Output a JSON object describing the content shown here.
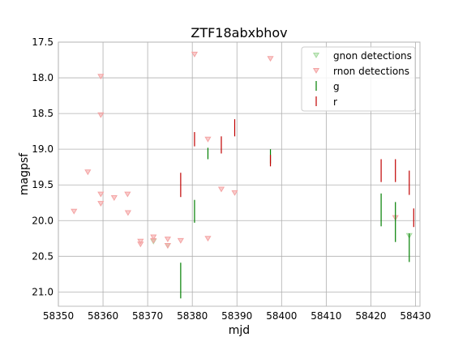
{
  "chart_data": {
    "type": "scatter",
    "title": "ZTF18abxbhov",
    "xlabel": "mjd",
    "ylabel": "magpsf",
    "xlim": [
      58350,
      58431
    ],
    "ylim": [
      21.2,
      17.5
    ],
    "y_inverted": true,
    "grid": true,
    "legend_position": "top-right",
    "xticks": [
      "58350",
      "58360",
      "58370",
      "58380",
      "58390",
      "58400",
      "58410",
      "58420",
      "58430"
    ],
    "yticks": [
      "17.5",
      "18.0",
      "18.5",
      "19.0",
      "19.5",
      "20.0",
      "20.5",
      "21.0"
    ],
    "colors": {
      "g_line": "#007f00",
      "r_line": "#c00000",
      "g_nondet": "#a6dba0",
      "r_nondet": "#f4a3a3"
    },
    "series": [
      {
        "name": "gnon detections",
        "kind": "nondetection",
        "band": "g",
        "points": [
          {
            "x": 58371.3,
            "y": 20.29
          },
          {
            "x": 58374.5,
            "y": 20.35
          },
          {
            "x": 58428.6,
            "y": 20.21
          }
        ]
      },
      {
        "name": "rnon detections",
        "kind": "nondetection",
        "band": "r",
        "points": [
          {
            "x": 58353.5,
            "y": 19.87
          },
          {
            "x": 58356.6,
            "y": 19.32
          },
          {
            "x": 58359.5,
            "y": 17.98
          },
          {
            "x": 58359.5,
            "y": 18.52
          },
          {
            "x": 58359.5,
            "y": 19.63
          },
          {
            "x": 58359.5,
            "y": 19.76
          },
          {
            "x": 58362.5,
            "y": 19.68
          },
          {
            "x": 58365.5,
            "y": 19.63
          },
          {
            "x": 58365.6,
            "y": 19.89
          },
          {
            "x": 58368.4,
            "y": 20.29
          },
          {
            "x": 58368.4,
            "y": 20.33
          },
          {
            "x": 58371.3,
            "y": 20.23
          },
          {
            "x": 58371.3,
            "y": 20.28
          },
          {
            "x": 58374.5,
            "y": 20.26
          },
          {
            "x": 58374.5,
            "y": 20.35
          },
          {
            "x": 58377.4,
            "y": 20.28
          },
          {
            "x": 58380.5,
            "y": 17.67
          },
          {
            "x": 58383.5,
            "y": 18.86
          },
          {
            "x": 58383.5,
            "y": 20.25
          },
          {
            "x": 58386.5,
            "y": 19.56
          },
          {
            "x": 58389.5,
            "y": 19.61
          },
          {
            "x": 58397.5,
            "y": 17.73
          },
          {
            "x": 58425.5,
            "y": 19.96
          }
        ]
      },
      {
        "name": "g",
        "kind": "detection",
        "band": "g",
        "points": [
          {
            "x": 58377.4,
            "y": 20.84,
            "err": 0.25
          },
          {
            "x": 58380.5,
            "y": 19.87,
            "err": 0.16
          },
          {
            "x": 58383.5,
            "y": 19.06,
            "err": 0.08
          },
          {
            "x": 58397.5,
            "y": 19.1,
            "err": 0.1
          },
          {
            "x": 58422.3,
            "y": 19.85,
            "err": 0.23
          },
          {
            "x": 58425.5,
            "y": 20.02,
            "err": 0.28
          },
          {
            "x": 58428.6,
            "y": 20.38,
            "err": 0.2
          }
        ]
      },
      {
        "name": "r",
        "kind": "detection",
        "band": "r",
        "points": [
          {
            "x": 58377.4,
            "y": 19.5,
            "err": 0.17
          },
          {
            "x": 58380.5,
            "y": 18.86,
            "err": 0.1
          },
          {
            "x": 58386.5,
            "y": 18.94,
            "err": 0.12
          },
          {
            "x": 58389.5,
            "y": 18.7,
            "err": 0.12
          },
          {
            "x": 58397.5,
            "y": 19.16,
            "err": 0.08
          },
          {
            "x": 58422.3,
            "y": 19.3,
            "err": 0.16
          },
          {
            "x": 58425.5,
            "y": 19.3,
            "err": 0.16
          },
          {
            "x": 58428.6,
            "y": 19.47,
            "err": 0.17
          },
          {
            "x": 58429.6,
            "y": 19.96,
            "err": 0.13
          }
        ]
      }
    ]
  }
}
